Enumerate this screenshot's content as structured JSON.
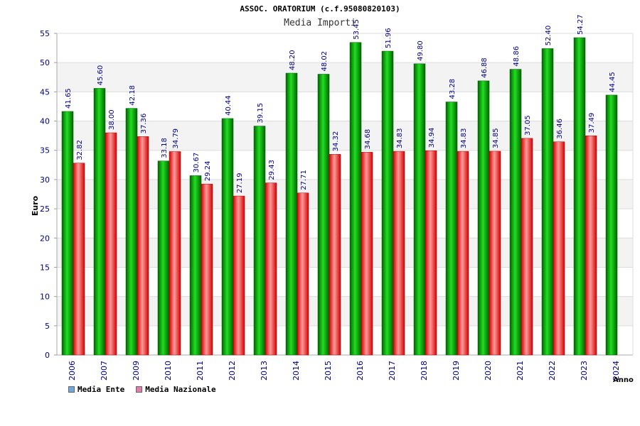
{
  "chart_data": {
    "type": "bar",
    "title": "ASSOC. ORATORIUM (c.f.95080820103)",
    "subtitle": "Media Importi",
    "ylabel": "Euro",
    "xlabel": "Anno",
    "ylim": [
      0,
      55
    ],
    "yticks": [
      0,
      5,
      10,
      15,
      20,
      25,
      30,
      35,
      40,
      45,
      50,
      55
    ],
    "categories": [
      "2006",
      "2007",
      "2009",
      "2010",
      "2011",
      "2012",
      "2013",
      "2014",
      "2015",
      "2016",
      "2017",
      "2018",
      "2019",
      "2020",
      "2021",
      "2022",
      "2023",
      "2024"
    ],
    "series": [
      {
        "name": "Media Ente",
        "color": "#00a000",
        "values": [
          41.65,
          45.6,
          42.18,
          33.18,
          30.67,
          40.44,
          39.15,
          48.2,
          48.02,
          53.45,
          51.96,
          49.8,
          43.28,
          46.88,
          48.86,
          52.4,
          54.27,
          44.45
        ]
      },
      {
        "name": "Media Nazionale",
        "color": "#e00000",
        "values": [
          32.82,
          38.0,
          37.36,
          34.79,
          29.24,
          27.19,
          29.43,
          27.71,
          34.32,
          34.68,
          34.83,
          34.94,
          34.83,
          34.85,
          37.05,
          36.46,
          37.49,
          null
        ]
      }
    ],
    "legend_colors": [
      "#6fa8dc",
      "#e07fae"
    ],
    "grid": true
  }
}
